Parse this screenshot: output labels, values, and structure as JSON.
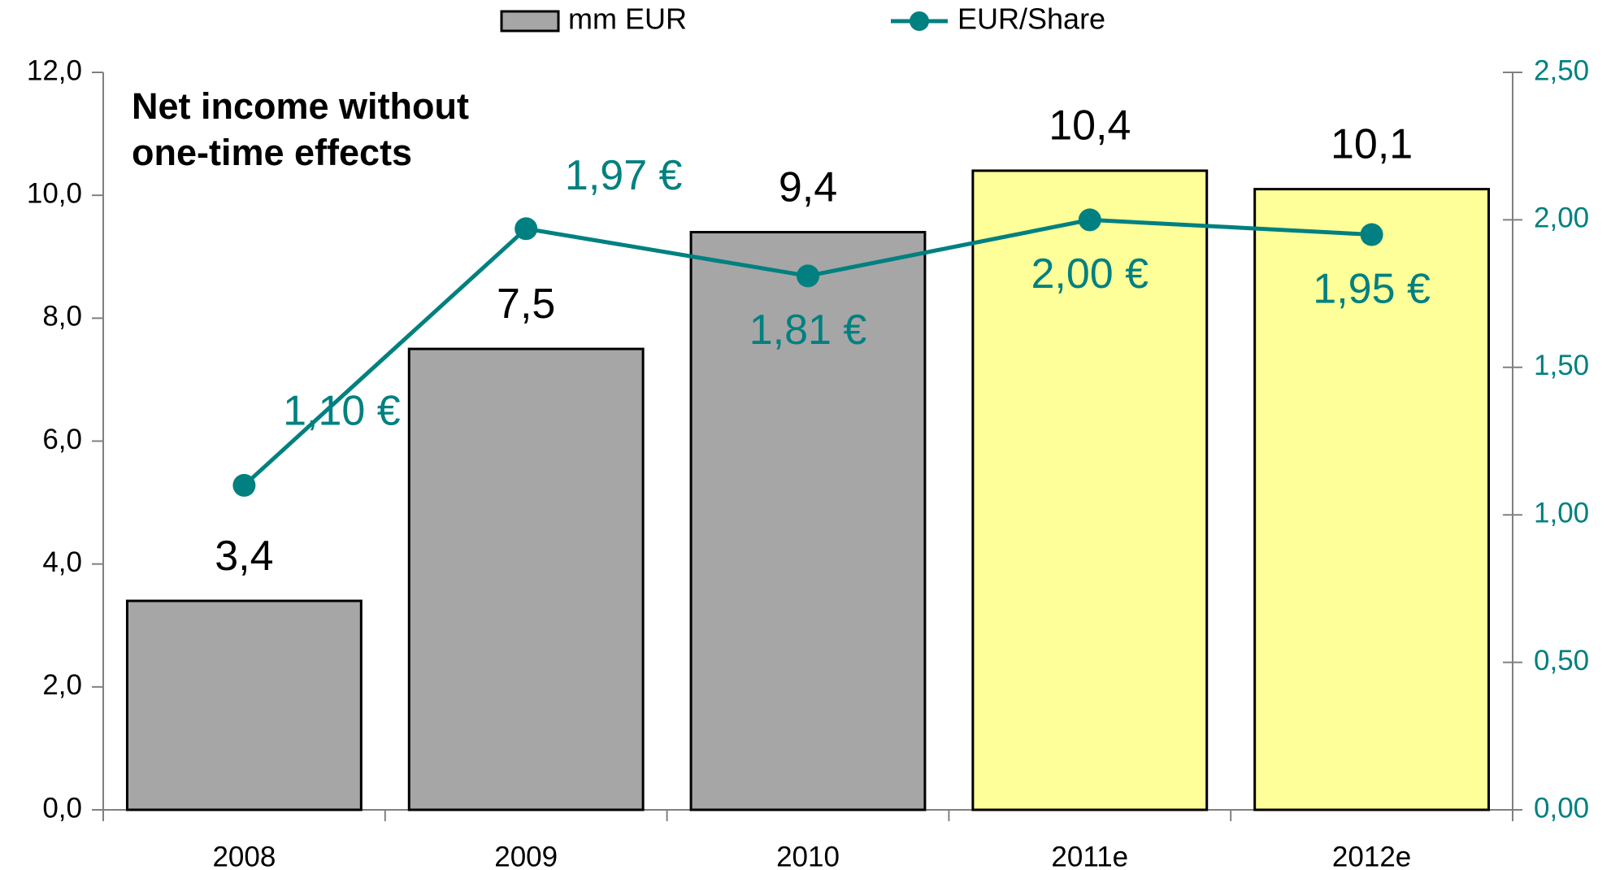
{
  "chart_data": {
    "type": "bar",
    "title": [
      "Net income without",
      "one-time effects"
    ],
    "categories": [
      "2008",
      "2009",
      "2010",
      "2011e",
      "2012e"
    ],
    "series": [
      {
        "name": "mm EUR",
        "type": "bar",
        "color": "#a6a6a6",
        "colors": [
          "#a6a6a6",
          "#a6a6a6",
          "#a6a6a6",
          "#ffff99",
          "#ffff99"
        ],
        "values": [
          3.4,
          7.5,
          9.4,
          10.4,
          10.1
        ],
        "value_labels": [
          "3,4",
          "7,5",
          "9,4",
          "10,4",
          "10,1"
        ]
      },
      {
        "name": "EUR/Share",
        "type": "line",
        "axis": "y2",
        "color": "#008080",
        "values": [
          1.1,
          1.97,
          1.81,
          2.0,
          1.95
        ],
        "value_labels": [
          "1,10 €",
          "1,97 €",
          "1,81 €",
          "2,00 €",
          "1,95 €"
        ]
      }
    ],
    "ylim": [
      0,
      12
    ],
    "yticks": [
      {
        "value": 0,
        "label": "0,0"
      },
      {
        "value": 2,
        "label": "2,0"
      },
      {
        "value": 4,
        "label": "4,0"
      },
      {
        "value": 6,
        "label": "6,0"
      },
      {
        "value": 8,
        "label": "8,0"
      },
      {
        "value": 10,
        "label": "10,0"
      },
      {
        "value": 12,
        "label": "12,0"
      }
    ],
    "y2lim": [
      0,
      2.5
    ],
    "y2ticks": [
      {
        "value": 0,
        "label": "0,00"
      },
      {
        "value": 0.5,
        "label": "0,50"
      },
      {
        "value": 1,
        "label": "1,00"
      },
      {
        "value": 1.5,
        "label": "1,50"
      },
      {
        "value": 2,
        "label": "2,00"
      },
      {
        "value": 2.5,
        "label": "2,50"
      }
    ],
    "y2color": "#008080",
    "legend": "top",
    "grid": false
  }
}
